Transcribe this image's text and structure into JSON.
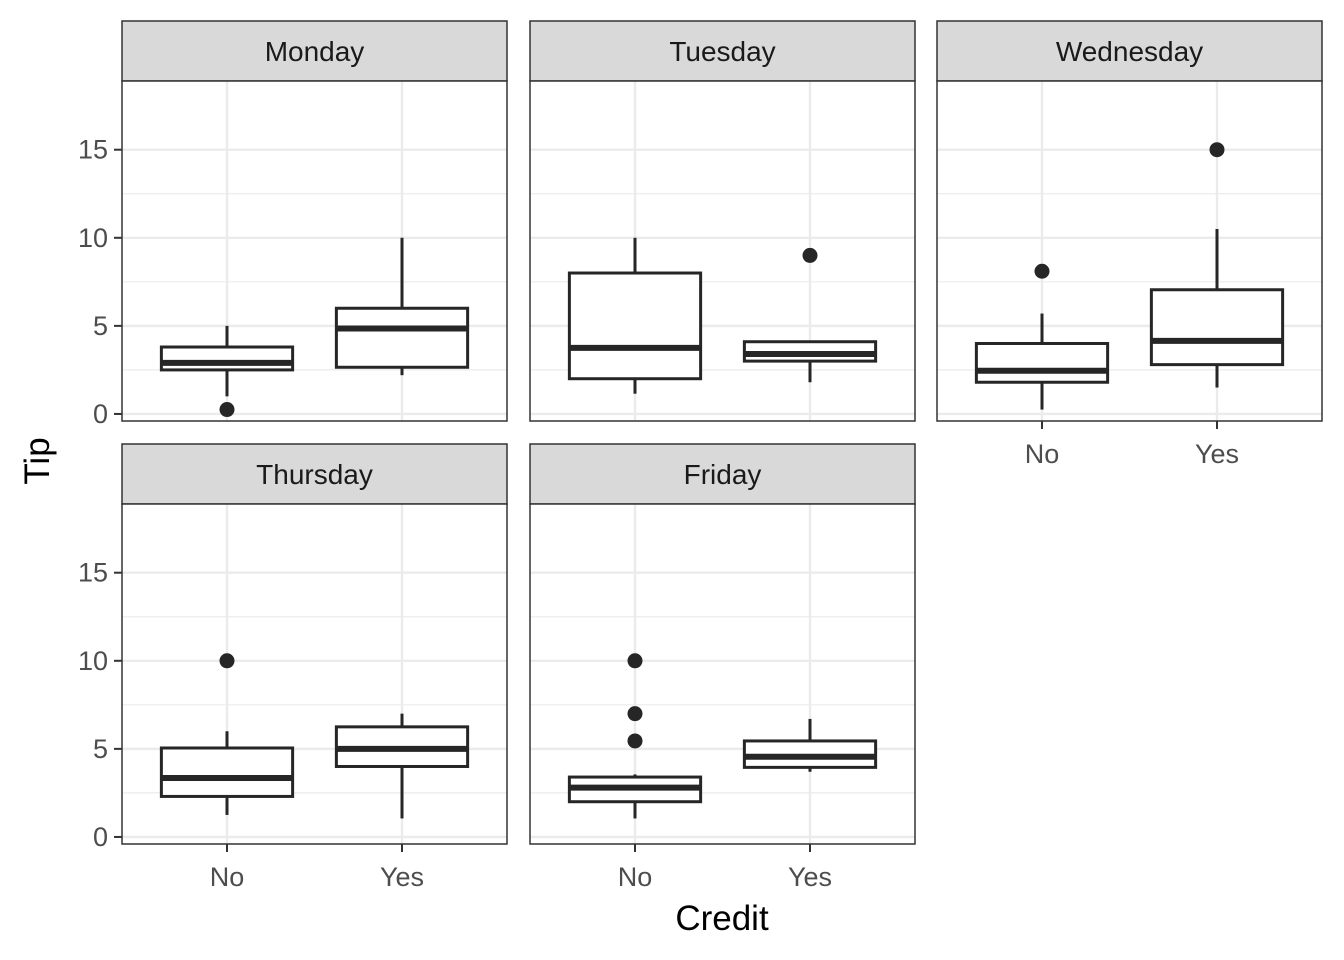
{
  "chart_data": {
    "type": "boxplot",
    "xlabel": "Credit",
    "ylabel": "Tip",
    "categories": [
      "No",
      "Yes"
    ],
    "ylim": [
      -0.4,
      18.9
    ],
    "yticks": [
      0,
      5,
      10,
      15
    ],
    "y_tick_labels": [
      "0",
      "5",
      "10",
      "15"
    ],
    "grid": true,
    "colors": {
      "strip_fill": "#d9d9d9",
      "box_stroke": "#262626",
      "grid_major": "#ebebeb",
      "panel_border": "#333333"
    },
    "panels": [
      {
        "name": "Monday",
        "boxes": [
          {
            "category": "No",
            "whisker_low": 1.0,
            "q1": 2.5,
            "median": 2.9,
            "q3": 3.8,
            "whisker_high": 5.0,
            "outliers": [
              0.25
            ]
          },
          {
            "category": "Yes",
            "whisker_low": 2.2,
            "q1": 2.65,
            "median": 4.85,
            "q3": 6.0,
            "whisker_high": 10.0,
            "outliers": []
          }
        ]
      },
      {
        "name": "Tuesday",
        "boxes": [
          {
            "category": "No",
            "whisker_low": 1.15,
            "q1": 2.0,
            "median": 3.75,
            "q3": 8.0,
            "whisker_high": 10.0,
            "outliers": []
          },
          {
            "category": "Yes",
            "whisker_low": 1.8,
            "q1": 3.0,
            "median": 3.4,
            "q3": 4.1,
            "whisker_high": 4.1,
            "outliers": [
              9.0
            ]
          }
        ]
      },
      {
        "name": "Wednesday",
        "boxes": [
          {
            "category": "No",
            "whisker_low": 0.25,
            "q1": 1.8,
            "median": 2.45,
            "q3": 4.0,
            "whisker_high": 5.7,
            "outliers": [
              8.1
            ]
          },
          {
            "category": "Yes",
            "whisker_low": 1.5,
            "q1": 2.8,
            "median": 4.15,
            "q3": 7.05,
            "whisker_high": 10.5,
            "outliers": [
              15.0
            ]
          }
        ]
      },
      {
        "name": "Thursday",
        "boxes": [
          {
            "category": "No",
            "whisker_low": 1.25,
            "q1": 2.3,
            "median": 3.35,
            "q3": 5.05,
            "whisker_high": 6.0,
            "outliers": [
              10.0
            ]
          },
          {
            "category": "Yes",
            "whisker_low": 1.05,
            "q1": 4.0,
            "median": 5.0,
            "q3": 6.25,
            "whisker_high": 7.0,
            "outliers": []
          }
        ]
      },
      {
        "name": "Friday",
        "boxes": [
          {
            "category": "No",
            "whisker_low": 1.05,
            "q1": 2.0,
            "median": 2.8,
            "q3": 3.4,
            "whisker_high": 3.55,
            "outliers": [
              5.45,
              7.0,
              10.0
            ]
          },
          {
            "category": "Yes",
            "whisker_low": 3.7,
            "q1": 3.95,
            "median": 4.55,
            "q3": 5.45,
            "whisker_high": 6.7,
            "outliers": []
          }
        ]
      }
    ]
  }
}
